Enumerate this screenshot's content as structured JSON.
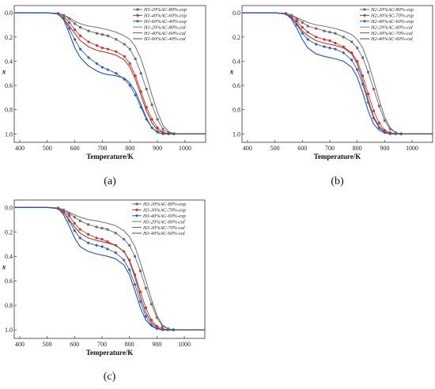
{
  "chart_data": [
    {
      "type": "line",
      "panel": "(a)",
      "xlabel": "Temperature/K",
      "ylabel": "x",
      "xlim": [
        380,
        1075
      ],
      "ylim": [
        -0.06,
        1.07
      ],
      "y_inverted": true,
      "xticks": [
        400,
        500,
        600,
        700,
        800,
        900,
        1000
      ],
      "yticks": [
        0.0,
        0.2,
        0.4,
        0.6,
        0.8,
        1.0
      ],
      "legend_position": "top-right",
      "series": [
        {
          "name": "H1-20%AC-80%-exp",
          "color": "#6b6b6b",
          "marker": "square",
          "x": [
            380,
            500,
            540,
            560,
            580,
            600,
            620,
            650,
            680,
            700,
            720,
            750,
            780,
            800,
            820,
            840,
            860,
            880,
            900,
            920,
            940,
            960,
            1000,
            1075
          ],
          "y": [
            0.0,
            0.0,
            0.005,
            0.02,
            0.05,
            0.09,
            0.12,
            0.15,
            0.17,
            0.18,
            0.19,
            0.22,
            0.26,
            0.3,
            0.38,
            0.5,
            0.63,
            0.76,
            0.88,
            0.96,
            0.99,
            1.0,
            1.0,
            1.0
          ]
        },
        {
          "name": "H1-40%AC-60%-exp",
          "color": "#c0392b",
          "marker": "circle",
          "x": [
            380,
            500,
            540,
            560,
            580,
            600,
            620,
            650,
            680,
            700,
            720,
            750,
            780,
            800,
            820,
            840,
            860,
            880,
            900,
            920,
            940,
            960,
            1000,
            1075
          ],
          "y": [
            0.0,
            0.0,
            0.005,
            0.03,
            0.08,
            0.14,
            0.19,
            0.24,
            0.27,
            0.29,
            0.3,
            0.32,
            0.36,
            0.42,
            0.52,
            0.65,
            0.78,
            0.88,
            0.95,
            0.985,
            1.0,
            1.0,
            1.0,
            1.0
          ]
        },
        {
          "name": "H1-60%AC-40%-exp",
          "color": "#2a5fb8",
          "marker": "diamond",
          "x": [
            380,
            500,
            540,
            560,
            580,
            600,
            620,
            650,
            680,
            700,
            720,
            750,
            780,
            800,
            820,
            840,
            860,
            880,
            900,
            920,
            940,
            960,
            1000,
            1075
          ],
          "y": [
            0.0,
            0.0,
            0.01,
            0.05,
            0.13,
            0.22,
            0.3,
            0.37,
            0.42,
            0.45,
            0.47,
            0.5,
            0.55,
            0.6,
            0.68,
            0.78,
            0.88,
            0.95,
            0.985,
            1.0,
            1.0,
            1.0,
            1.0,
            1.0
          ]
        },
        {
          "name": "H1-20%AC-80%-cal",
          "color": "#7a7a7a",
          "marker": "none",
          "x": [
            380,
            500,
            540,
            560,
            580,
            600,
            620,
            650,
            680,
            700,
            720,
            750,
            780,
            800,
            820,
            840,
            860,
            880,
            900,
            920,
            940,
            960,
            1000,
            1075
          ],
          "y": [
            0.0,
            0.0,
            0.005,
            0.02,
            0.04,
            0.07,
            0.09,
            0.11,
            0.12,
            0.13,
            0.14,
            0.16,
            0.19,
            0.22,
            0.28,
            0.38,
            0.52,
            0.68,
            0.82,
            0.93,
            0.98,
            1.0,
            1.0,
            1.0
          ]
        },
        {
          "name": "H1-40%AC-60%-cal",
          "color": "#b23a2e",
          "marker": "none",
          "x": [
            380,
            500,
            540,
            560,
            580,
            600,
            620,
            650,
            680,
            700,
            720,
            750,
            780,
            800,
            820,
            840,
            860,
            880,
            900,
            920,
            940,
            960,
            1000,
            1075
          ],
          "y": [
            0.0,
            0.0,
            0.01,
            0.05,
            0.11,
            0.17,
            0.23,
            0.28,
            0.31,
            0.32,
            0.33,
            0.35,
            0.39,
            0.45,
            0.55,
            0.68,
            0.81,
            0.91,
            0.97,
            0.99,
            1.0,
            1.0,
            1.0,
            1.0
          ]
        },
        {
          "name": "H1-60%AC-40%-cal",
          "color": "#1f56b5",
          "marker": "none",
          "x": [
            380,
            500,
            540,
            560,
            580,
            600,
            620,
            650,
            680,
            700,
            720,
            750,
            780,
            800,
            820,
            840,
            860,
            880,
            900,
            920,
            940,
            960,
            1000,
            1075
          ],
          "y": [
            0.0,
            0.0,
            0.01,
            0.06,
            0.17,
            0.29,
            0.37,
            0.44,
            0.48,
            0.5,
            0.51,
            0.52,
            0.54,
            0.58,
            0.65,
            0.76,
            0.87,
            0.95,
            0.99,
            1.0,
            1.0,
            1.0,
            1.0,
            1.0
          ]
        }
      ]
    },
    {
      "type": "line",
      "panel": "(b)",
      "xlabel": "Temperature/K",
      "ylabel": "x",
      "xlim": [
        380,
        1075
      ],
      "ylim": [
        -0.06,
        1.07
      ],
      "y_inverted": true,
      "xticks": [
        400,
        500,
        600,
        700,
        800,
        900,
        1000
      ],
      "yticks": [
        0.0,
        0.2,
        0.4,
        0.6,
        0.8,
        1.0
      ],
      "legend_position": "top-right",
      "series": [
        {
          "name": "H2-20%AC-80%-exp",
          "color": "#6b6b6b",
          "marker": "square",
          "x": [
            380,
            500,
            540,
            560,
            580,
            600,
            620,
            650,
            680,
            700,
            720,
            750,
            780,
            800,
            820,
            840,
            860,
            880,
            900,
            920,
            940,
            960,
            1000,
            1075
          ],
          "y": [
            0.0,
            0.0,
            0.005,
            0.02,
            0.05,
            0.08,
            0.11,
            0.13,
            0.15,
            0.16,
            0.17,
            0.2,
            0.24,
            0.29,
            0.37,
            0.49,
            0.63,
            0.77,
            0.89,
            0.96,
            0.99,
            1.0,
            1.0,
            1.0
          ]
        },
        {
          "name": "H2-30%AC-70%-exp",
          "color": "#c0392b",
          "marker": "circle",
          "x": [
            380,
            500,
            540,
            560,
            580,
            600,
            620,
            650,
            680,
            700,
            720,
            750,
            780,
            800,
            820,
            840,
            860,
            880,
            900,
            920,
            940,
            960,
            1000,
            1075
          ],
          "y": [
            0.0,
            0.0,
            0.005,
            0.03,
            0.07,
            0.12,
            0.16,
            0.2,
            0.22,
            0.23,
            0.25,
            0.28,
            0.33,
            0.4,
            0.52,
            0.67,
            0.81,
            0.91,
            0.97,
            0.99,
            1.0,
            1.0,
            1.0,
            1.0
          ]
        },
        {
          "name": "H2-40%AC-60%-exp",
          "color": "#2a5fb8",
          "marker": "diamond",
          "x": [
            380,
            500,
            540,
            560,
            580,
            600,
            620,
            650,
            680,
            700,
            720,
            750,
            780,
            800,
            820,
            840,
            860,
            880,
            900,
            920,
            940,
            960,
            1000,
            1075
          ],
          "y": [
            0.0,
            0.0,
            0.01,
            0.04,
            0.1,
            0.17,
            0.22,
            0.26,
            0.28,
            0.29,
            0.3,
            0.33,
            0.39,
            0.47,
            0.59,
            0.74,
            0.87,
            0.95,
            0.99,
            1.0,
            1.0,
            1.0,
            1.0,
            1.0
          ]
        },
        {
          "name": "H2-20%AC-80%-cal",
          "color": "#7a7a7a",
          "marker": "none",
          "x": [
            380,
            500,
            540,
            560,
            580,
            600,
            620,
            650,
            680,
            700,
            720,
            750,
            780,
            800,
            820,
            840,
            860,
            880,
            900,
            920,
            940,
            960,
            1000,
            1075
          ],
          "y": [
            0.0,
            0.0,
            0.005,
            0.02,
            0.04,
            0.06,
            0.08,
            0.1,
            0.11,
            0.12,
            0.13,
            0.15,
            0.18,
            0.22,
            0.29,
            0.41,
            0.56,
            0.72,
            0.86,
            0.95,
            0.99,
            1.0,
            1.0,
            1.0
          ]
        },
        {
          "name": "H2-30%AC-70%-cal",
          "color": "#b23a2e",
          "marker": "none",
          "x": [
            380,
            500,
            540,
            560,
            580,
            600,
            620,
            650,
            680,
            700,
            720,
            750,
            780,
            800,
            820,
            840,
            860,
            880,
            900,
            920,
            940,
            960,
            1000,
            1075
          ],
          "y": [
            0.0,
            0.0,
            0.01,
            0.04,
            0.09,
            0.15,
            0.19,
            0.23,
            0.25,
            0.26,
            0.27,
            0.29,
            0.34,
            0.42,
            0.56,
            0.72,
            0.86,
            0.94,
            0.98,
            1.0,
            1.0,
            1.0,
            1.0,
            1.0
          ]
        },
        {
          "name": "H2-40%AC-60%-cal",
          "color": "#1f56b5",
          "marker": "none",
          "x": [
            380,
            500,
            540,
            560,
            580,
            600,
            620,
            650,
            680,
            700,
            720,
            750,
            780,
            800,
            820,
            840,
            860,
            880,
            900,
            920,
            940,
            960,
            1000,
            1075
          ],
          "y": [
            0.0,
            0.0,
            0.01,
            0.05,
            0.13,
            0.22,
            0.29,
            0.34,
            0.36,
            0.37,
            0.38,
            0.4,
            0.45,
            0.53,
            0.66,
            0.81,
            0.92,
            0.97,
            0.99,
            1.0,
            1.0,
            1.0,
            1.0,
            1.0
          ]
        }
      ]
    },
    {
      "type": "line",
      "panel": "(c)",
      "xlabel": "Temperature/K",
      "ylabel": "x",
      "xlim": [
        380,
        1075
      ],
      "ylim": [
        -0.06,
        1.07
      ],
      "y_inverted": true,
      "xticks": [
        400,
        500,
        600,
        700,
        800,
        900,
        1000
      ],
      "yticks": [
        0.0,
        0.2,
        0.4,
        0.6,
        0.8,
        1.0
      ],
      "legend_position": "top-right",
      "series": [
        {
          "name": "H3-20%AC-80%-exp",
          "color": "#6b6b6b",
          "marker": "square",
          "x": [
            380,
            500,
            540,
            560,
            580,
            600,
            620,
            650,
            680,
            700,
            720,
            750,
            780,
            800,
            820,
            840,
            860,
            880,
            900,
            920,
            940,
            960,
            1000,
            1075
          ],
          "y": [
            0.0,
            0.0,
            0.005,
            0.02,
            0.05,
            0.08,
            0.11,
            0.14,
            0.16,
            0.17,
            0.18,
            0.21,
            0.26,
            0.31,
            0.4,
            0.52,
            0.66,
            0.79,
            0.9,
            0.97,
            0.99,
            1.0,
            1.0,
            1.0
          ]
        },
        {
          "name": "H3-30%AC-70%-exp",
          "color": "#c0392b",
          "marker": "circle",
          "x": [
            380,
            500,
            540,
            560,
            580,
            600,
            620,
            650,
            680,
            700,
            720,
            750,
            780,
            800,
            820,
            840,
            860,
            880,
            900,
            920,
            940,
            960,
            1000,
            1075
          ],
          "y": [
            0.0,
            0.0,
            0.005,
            0.03,
            0.07,
            0.13,
            0.18,
            0.22,
            0.25,
            0.26,
            0.28,
            0.31,
            0.36,
            0.43,
            0.55,
            0.69,
            0.82,
            0.92,
            0.97,
            0.99,
            1.0,
            1.0,
            1.0,
            1.0
          ]
        },
        {
          "name": "H3-40%AC-60%-exp",
          "color": "#2a5fb8",
          "marker": "diamond",
          "x": [
            380,
            500,
            540,
            560,
            580,
            600,
            620,
            650,
            680,
            700,
            720,
            750,
            780,
            800,
            820,
            840,
            860,
            880,
            900,
            920,
            940,
            960,
            1000,
            1075
          ],
          "y": [
            0.0,
            0.0,
            0.01,
            0.04,
            0.11,
            0.19,
            0.25,
            0.29,
            0.31,
            0.32,
            0.34,
            0.37,
            0.43,
            0.51,
            0.63,
            0.77,
            0.89,
            0.96,
            0.99,
            1.0,
            1.0,
            1.0,
            1.0,
            1.0
          ]
        },
        {
          "name": "H3-20%AC-80%-cal",
          "color": "#7a7a7a",
          "marker": "none",
          "x": [
            380,
            500,
            540,
            560,
            580,
            600,
            620,
            650,
            680,
            700,
            720,
            750,
            780,
            800,
            820,
            840,
            860,
            880,
            900,
            920,
            940,
            960,
            1000,
            1075
          ],
          "y": [
            0.0,
            0.0,
            0.005,
            0.02,
            0.04,
            0.06,
            0.08,
            0.1,
            0.11,
            0.12,
            0.13,
            0.15,
            0.19,
            0.24,
            0.32,
            0.45,
            0.6,
            0.75,
            0.88,
            0.96,
            0.99,
            1.0,
            1.0,
            1.0
          ]
        },
        {
          "name": "H3-30%AC-70%-cal",
          "color": "#b23a2e",
          "marker": "none",
          "x": [
            380,
            500,
            540,
            560,
            580,
            600,
            620,
            650,
            680,
            700,
            720,
            750,
            780,
            800,
            820,
            840,
            860,
            880,
            900,
            920,
            940,
            960,
            1000,
            1075
          ],
          "y": [
            0.0,
            0.0,
            0.01,
            0.04,
            0.1,
            0.16,
            0.21,
            0.25,
            0.27,
            0.28,
            0.29,
            0.31,
            0.36,
            0.44,
            0.57,
            0.73,
            0.86,
            0.94,
            0.98,
            1.0,
            1.0,
            1.0,
            1.0,
            1.0
          ]
        },
        {
          "name": "H3-40%AC-60%-cal",
          "color": "#1f56b5",
          "marker": "none",
          "x": [
            380,
            500,
            540,
            560,
            580,
            600,
            620,
            650,
            680,
            700,
            720,
            750,
            780,
            800,
            820,
            840,
            860,
            880,
            900,
            920,
            940,
            960,
            1000,
            1075
          ],
          "y": [
            0.0,
            0.0,
            0.01,
            0.06,
            0.15,
            0.25,
            0.32,
            0.36,
            0.38,
            0.39,
            0.4,
            0.42,
            0.47,
            0.55,
            0.68,
            0.82,
            0.92,
            0.97,
            0.99,
            1.0,
            1.0,
            1.0,
            1.0,
            1.0
          ]
        }
      ]
    }
  ]
}
